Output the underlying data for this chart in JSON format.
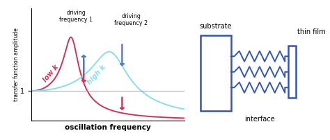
{
  "bg_color": "#ffffff",
  "curve1_color": "#cc3355",
  "curve2_color": "#88ddee",
  "arrow1_color": "#cc3355",
  "arrow2_color": "#5577bb",
  "hline_color": "#aaaaaa",
  "box_color": "#3355aa",
  "spring_color": "#3355aa",
  "low_k_label": "low k",
  "high_k_label": "high k",
  "ylabel": "transfer function amplitude",
  "xlabel": "oscillation frequency",
  "driving1_label": "driving\nfrequency 1",
  "driving2_label": "driving\nfrequency 2",
  "substrate_label": "substrate",
  "thinfilm_label": "thin film",
  "interface_label": "interface",
  "f0_1": 1.6,
  "zeta1": 0.18,
  "f0_2": 3.2,
  "zeta2": 0.22,
  "drive1_x": 2.05,
  "drive2_x": 3.55,
  "xmin": 0.0,
  "xmax": 6.0,
  "ymin": 0.0,
  "ymax": 3.8
}
